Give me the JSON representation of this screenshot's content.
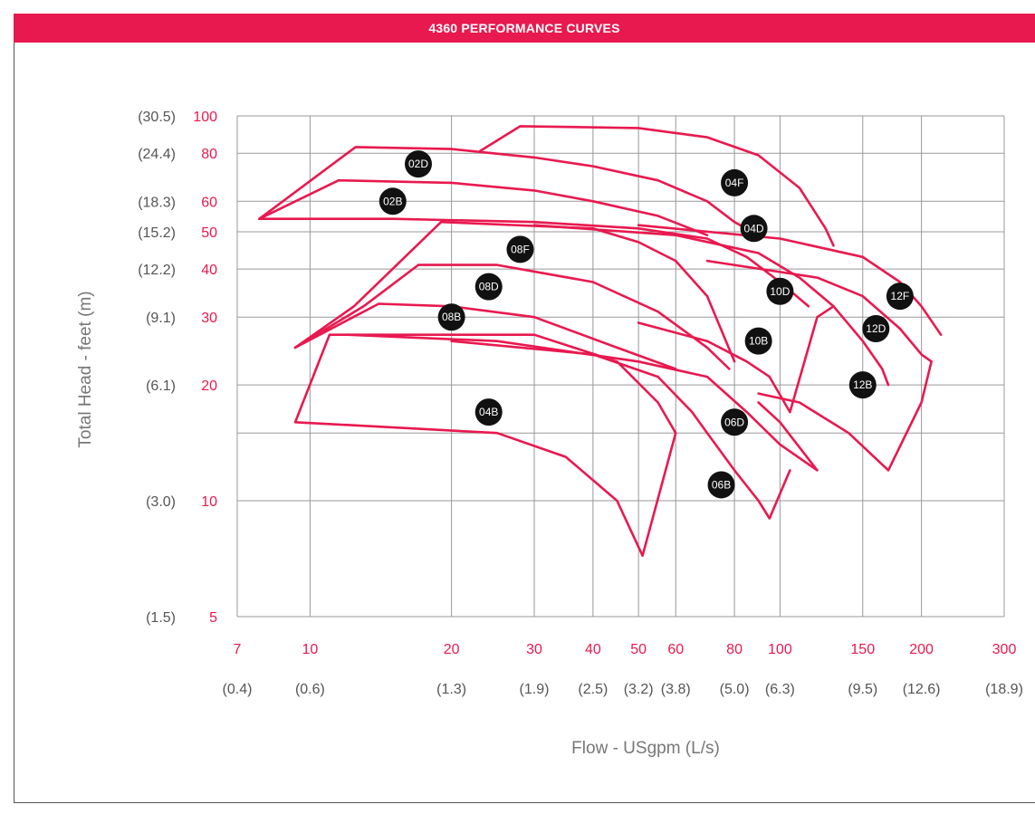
{
  "header": {
    "title": "4360 PERFORMANCE CURVES"
  },
  "colors": {
    "accent": "#e8194f",
    "grid": "#999999",
    "secondary_text": "#555555",
    "badge": "#111111"
  },
  "chart_data": {
    "type": "line",
    "title": "4360 PERFORMANCE CURVES",
    "xlabel": "Flow - USgpm (L/s)",
    "ylabel": "Total Head - feet (m)",
    "x_scale": "log",
    "y_scale": "log",
    "xlim": [
      7,
      300
    ],
    "ylim": [
      5,
      100
    ],
    "grid": true,
    "x_ticks": [
      {
        "value": 7,
        "label": "7",
        "metric": "(0.4)"
      },
      {
        "value": 10,
        "label": "10",
        "metric": "(0.6)"
      },
      {
        "value": 20,
        "label": "20",
        "metric": "(1.3)"
      },
      {
        "value": 30,
        "label": "30",
        "metric": "(1.9)"
      },
      {
        "value": 40,
        "label": "40",
        "metric": "(2.5)"
      },
      {
        "value": 50,
        "label": "50",
        "metric": "(3.2)"
      },
      {
        "value": 60,
        "label": "60",
        "metric": "(3.8)"
      },
      {
        "value": 80,
        "label": "80",
        "metric": "(5.0)"
      },
      {
        "value": 100,
        "label": "100",
        "metric": "(6.3)"
      },
      {
        "value": 150,
        "label": "150",
        "metric": "(9.5)"
      },
      {
        "value": 200,
        "label": "200",
        "metric": "(12.6)"
      },
      {
        "value": 300,
        "label": "300",
        "metric": "(18.9)"
      }
    ],
    "y_ticks": [
      {
        "value": 100,
        "label": "100",
        "metric": "(30.5)"
      },
      {
        "value": 80,
        "label": "80",
        "metric": "(24.4)"
      },
      {
        "value": 60,
        "label": "60",
        "metric": "(18.3)"
      },
      {
        "value": 50,
        "label": "50",
        "metric": "(15.2)"
      },
      {
        "value": 40,
        "label": "40",
        "metric": "(12.2)"
      },
      {
        "value": 30,
        "label": "30",
        "metric": "(9.1)"
      },
      {
        "value": 20,
        "label": "20",
        "metric": "(6.1)"
      },
      {
        "value": 15,
        "label": "",
        "metric": ""
      },
      {
        "value": 10,
        "label": "10",
        "metric": "(3.0)"
      },
      {
        "value": 5,
        "label": "5",
        "metric": "(1.5)"
      }
    ],
    "series": [
      {
        "name": "02B",
        "label_at": [
          15,
          60
        ],
        "points": [
          [
            7.8,
            54
          ],
          [
            11.5,
            68
          ],
          [
            20,
            67
          ],
          [
            30,
            64
          ],
          [
            40,
            60
          ],
          [
            55,
            55
          ],
          [
            70,
            49
          ]
        ]
      },
      {
        "name": "02D",
        "label_at": [
          17,
          75
        ],
        "points": [
          [
            7.8,
            54
          ],
          [
            12.5,
            83
          ],
          [
            20,
            82
          ],
          [
            30,
            78
          ],
          [
            40,
            74
          ],
          [
            55,
            68
          ],
          [
            70,
            60
          ],
          [
            80,
            53
          ],
          [
            90,
            49
          ]
        ]
      },
      {
        "name": "04F",
        "label_at": [
          80,
          67
        ],
        "points": [
          [
            23,
            81
          ],
          [
            28,
            94
          ],
          [
            50,
            93
          ],
          [
            70,
            88
          ],
          [
            90,
            79
          ],
          [
            110,
            65
          ],
          [
            125,
            51
          ],
          [
            130,
            46
          ]
        ]
      },
      {
        "name": "04D",
        "label_at": [
          88,
          51
        ],
        "points": [
          [
            7.8,
            54
          ],
          [
            15,
            54
          ],
          [
            30,
            53
          ],
          [
            50,
            51
          ],
          [
            70,
            48
          ],
          [
            85,
            43
          ],
          [
            100,
            37
          ],
          [
            115,
            32
          ]
        ]
      },
      {
        "name": "08F",
        "label_at": [
          28,
          45
        ],
        "points": [
          [
            9.3,
            25
          ],
          [
            12.4,
            32
          ],
          [
            19,
            53
          ],
          [
            40,
            51
          ],
          [
            50,
            47
          ],
          [
            60,
            42
          ],
          [
            70,
            34
          ],
          [
            80,
            23
          ]
        ]
      },
      {
        "name": "08D",
        "label_at": [
          24,
          36
        ],
        "points": [
          [
            9.3,
            25
          ],
          [
            13,
            32
          ],
          [
            17,
            41
          ],
          [
            25,
            41
          ],
          [
            40,
            37
          ],
          [
            55,
            31
          ],
          [
            70,
            25
          ],
          [
            78,
            22
          ]
        ]
      },
      {
        "name": "08B",
        "label_at": [
          20,
          30
        ],
        "points": [
          [
            9.3,
            25
          ],
          [
            14,
            32.5
          ],
          [
            20,
            32
          ],
          [
            30,
            30
          ],
          [
            45,
            25
          ],
          [
            60,
            22
          ]
        ]
      },
      {
        "name": "10D",
        "label_at": [
          100,
          35
        ],
        "points": [
          [
            30,
            52
          ],
          [
            60,
            49
          ],
          [
            90,
            44
          ],
          [
            110,
            38
          ],
          [
            130,
            32
          ],
          [
            150,
            26
          ],
          [
            165,
            22
          ],
          [
            170,
            20
          ]
        ]
      },
      {
        "name": "12F",
        "label_at": [
          180,
          34
        ],
        "points": [
          [
            50,
            52
          ],
          [
            100,
            48
          ],
          [
            150,
            43
          ],
          [
            180,
            37
          ],
          [
            200,
            32
          ],
          [
            220,
            27
          ]
        ]
      },
      {
        "name": "12D",
        "label_at": [
          160,
          28
        ],
        "points": [
          [
            70,
            42
          ],
          [
            120,
            38
          ],
          [
            150,
            34
          ],
          [
            180,
            28
          ],
          [
            200,
            24
          ],
          [
            210,
            23
          ]
        ]
      },
      {
        "name": "12B",
        "label_at": [
          150,
          20
        ],
        "points": [
          [
            90,
            19
          ],
          [
            110,
            18
          ],
          [
            140,
            15
          ],
          [
            170,
            12
          ],
          [
            200,
            18
          ],
          [
            210,
            23
          ]
        ]
      },
      {
        "name": "10B",
        "label_at": [
          90,
          26
        ],
        "points": [
          [
            50,
            29
          ],
          [
            70,
            26
          ],
          [
            85,
            23
          ],
          [
            95,
            21
          ],
          [
            105,
            17
          ],
          [
            120,
            30
          ],
          [
            130,
            32
          ]
        ]
      },
      {
        "name": "06D",
        "label_at": [
          80,
          16
        ],
        "points": [
          [
            12,
            27
          ],
          [
            25,
            26
          ],
          [
            50,
            23
          ],
          [
            70,
            21
          ],
          [
            85,
            17
          ],
          [
            100,
            14
          ],
          [
            120,
            12
          ],
          [
            100,
            16
          ],
          [
            90,
            18
          ]
        ]
      },
      {
        "name": "06B",
        "label_at": [
          75,
          11
        ],
        "points": [
          [
            20,
            26
          ],
          [
            40,
            24
          ],
          [
            55,
            21
          ],
          [
            65,
            17
          ],
          [
            70,
            15
          ],
          [
            80,
            12
          ],
          [
            90,
            10
          ],
          [
            95,
            9
          ],
          [
            105,
            12
          ]
        ]
      },
      {
        "name": "04B",
        "label_at": [
          24,
          17
        ],
        "points": [
          [
            9.3,
            16
          ],
          [
            11,
            27
          ],
          [
            30,
            27
          ],
          [
            45,
            23
          ],
          [
            55,
            18
          ],
          [
            60,
            15
          ],
          [
            51,
            7.2
          ],
          [
            45,
            10
          ],
          [
            35,
            13
          ],
          [
            25,
            15
          ],
          [
            9.3,
            16
          ]
        ]
      }
    ]
  }
}
